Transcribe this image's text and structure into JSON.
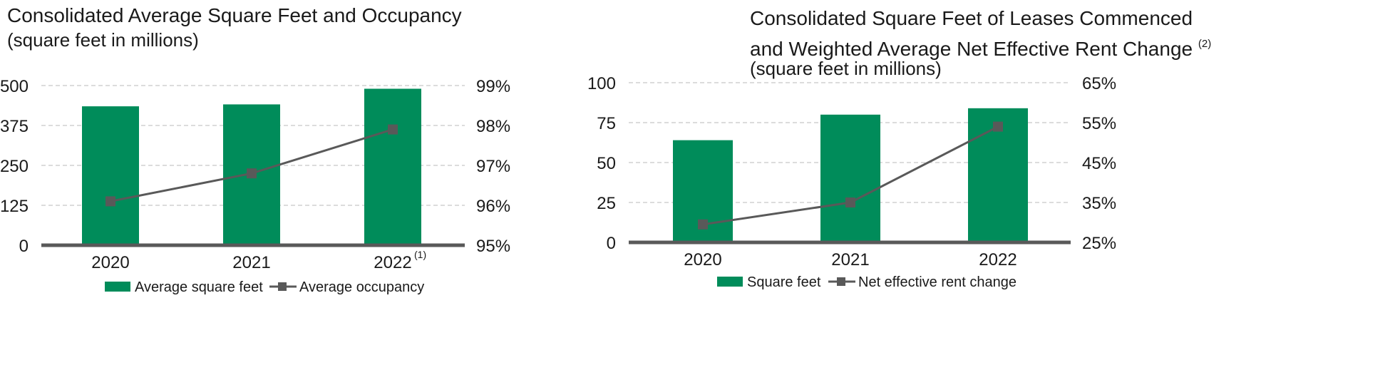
{
  "colors": {
    "bar": "#008c5a",
    "line": "#595959",
    "grid": "#c8c8c8",
    "axis": "#595959"
  },
  "chart_data": [
    {
      "type": "bar",
      "title": "Consolidated Average Square Feet and Occupancy",
      "subtitle": "(square feet in millions)",
      "categories": [
        "2020",
        "2021",
        "2022"
      ],
      "category_notes": [
        "",
        "",
        "(1)"
      ],
      "ylim": [
        0,
        500
      ],
      "yticks": [
        "0",
        "125",
        "250",
        "375",
        "500"
      ],
      "y2lim": [
        95,
        99
      ],
      "y2ticks": [
        "95%",
        "96%",
        "97%",
        "98%",
        "99%"
      ],
      "grid": true,
      "legend_position": "bottom",
      "series": [
        {
          "name": "Average square feet",
          "type": "bar",
          "axis": "left",
          "values": [
            435,
            441,
            490
          ]
        },
        {
          "name": "Average occupancy",
          "type": "line",
          "axis": "right",
          "values": [
            96.1,
            96.8,
            97.9
          ]
        }
      ]
    },
    {
      "type": "bar",
      "title": "Consolidated Square Feet of Leases Commenced",
      "title2": "and Weighted Average Net Effective Rent Change",
      "title_note": "(2)",
      "subtitle": "(square feet in millions)",
      "categories": [
        "2020",
        "2021",
        "2022"
      ],
      "category_notes": [
        "",
        "",
        ""
      ],
      "ylim": [
        0,
        100
      ],
      "yticks": [
        "0",
        "25",
        "50",
        "75",
        "100"
      ],
      "y2lim": [
        25,
        65
      ],
      "y2ticks": [
        "25%",
        "35%",
        "45%",
        "55%",
        "65%"
      ],
      "grid": true,
      "legend_position": "bottom",
      "series": [
        {
          "name": "Square feet",
          "type": "bar",
          "axis": "left",
          "values": [
            64,
            80,
            84
          ]
        },
        {
          "name": "Net effective rent change",
          "type": "line",
          "axis": "right",
          "values": [
            29.5,
            35,
            54
          ]
        }
      ]
    }
  ]
}
